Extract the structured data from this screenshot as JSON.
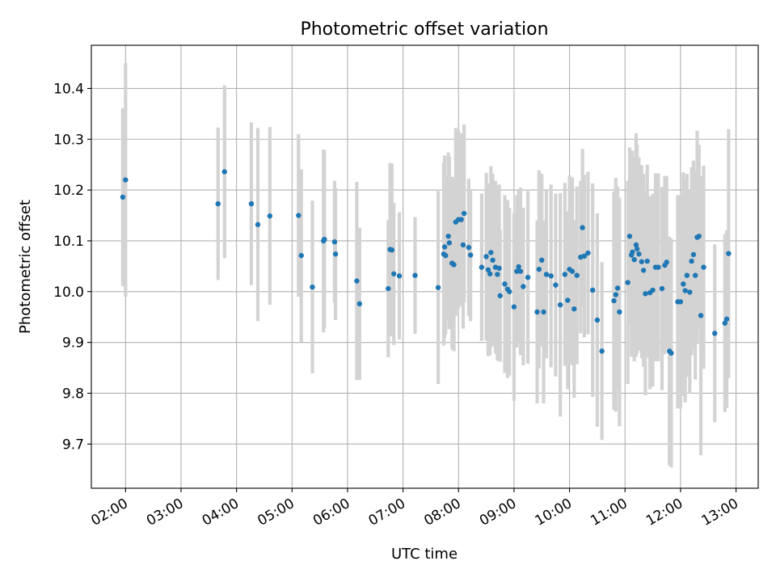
{
  "chart_data": {
    "type": "scatter",
    "title": "Photometric offset variation",
    "xlabel": "UTC time",
    "ylabel": "Photometric offset",
    "xlim": [
      "01:23",
      "13:24"
    ],
    "ylim": [
      9.613,
      10.485
    ],
    "grid": true,
    "legend": "none",
    "x_tick_labels": [
      "02:00",
      "03:00",
      "04:00",
      "05:00",
      "06:00",
      "07:00",
      "08:00",
      "09:00",
      "10:00",
      "11:00",
      "12:00",
      "13:00"
    ],
    "y_tick_values": [
      9.7,
      9.8,
      9.9,
      10.0,
      10.1,
      10.2,
      10.3,
      10.4
    ],
    "y_tick_labels": [
      "9.7",
      "9.8",
      "9.9",
      "10.0",
      "10.1",
      "10.2",
      "10.3",
      "10.4"
    ],
    "colors": {
      "point": "#1f77b4",
      "errorbar": "#d3d3d3",
      "grid": "#b0b0b0",
      "axis": "#000000"
    },
    "series": [
      {
        "point_columns": [
          "time",
          "offset",
          "error"
        ],
        "points": [
          [
            "01:57",
            10.186,
            0.175
          ],
          [
            "02:00",
            10.22,
            0.23
          ],
          [
            "03:40",
            10.173,
            0.15
          ],
          [
            "03:47",
            10.236,
            0.17
          ],
          [
            "04:16",
            10.173,
            0.16
          ],
          [
            "04:23",
            10.132,
            0.19
          ],
          [
            "04:36",
            10.149,
            0.175
          ],
          [
            "05:07",
            10.15,
            0.16
          ],
          [
            "05:10",
            10.071,
            0.17
          ],
          [
            "05:22",
            10.009,
            0.17
          ],
          [
            "05:34",
            10.1,
            0.18
          ],
          [
            "05:35",
            10.103,
            0.175
          ],
          [
            "05:46",
            10.098,
            0.12
          ],
          [
            "05:47",
            10.074,
            0.13
          ],
          [
            "06:10",
            10.021,
            0.195
          ],
          [
            "06:13",
            9.976,
            0.15
          ],
          [
            "06:44",
            10.006,
            0.135
          ],
          [
            "06:46",
            10.083,
            0.17
          ],
          [
            "06:48",
            10.082,
            0.17
          ],
          [
            "06:50",
            10.035,
            0.14
          ],
          [
            "06:56",
            10.031,
            0.125
          ],
          [
            "07:13",
            10.032,
            0.115
          ],
          [
            "07:38",
            10.008,
            0.19
          ],
          [
            "07:44",
            10.074,
            0.18
          ],
          [
            "07:45",
            10.088,
            0.18
          ],
          [
            "07:46",
            10.071,
            0.155
          ],
          [
            "07:49",
            10.109,
            0.165
          ],
          [
            "07:50",
            10.096,
            0.17
          ],
          [
            "07:53",
            10.056,
            0.17
          ],
          [
            "07:55",
            10.053,
            0.17
          ],
          [
            "07:57",
            10.137,
            0.185
          ],
          [
            "08:00",
            10.142,
            0.175
          ],
          [
            "08:03",
            10.142,
            0.17
          ],
          [
            "08:05",
            10.092,
            0.165
          ],
          [
            "08:06",
            10.154,
            0.175
          ],
          [
            "08:11",
            10.087,
            0.135
          ],
          [
            "08:13",
            10.072,
            0.13
          ],
          [
            "08:25",
            10.048,
            0.145
          ],
          [
            "08:30",
            10.069,
            0.165
          ],
          [
            "08:32",
            10.043,
            0.17
          ],
          [
            "08:34",
            10.035,
            0.16
          ],
          [
            "08:35",
            10.077,
            0.17
          ],
          [
            "08:37",
            10.062,
            0.17
          ],
          [
            "08:40",
            10.048,
            0.17
          ],
          [
            "08:42",
            10.034,
            0.17
          ],
          [
            "08:44",
            10.046,
            0.165
          ],
          [
            "08:45",
            9.992,
            0.13
          ],
          [
            "08:50",
            10.015,
            0.175
          ],
          [
            "08:53",
            10.005,
            0.175
          ],
          [
            "08:55",
            10.0,
            0.165
          ],
          [
            "09:00",
            9.97,
            0.185
          ],
          [
            "09:03",
            10.04,
            0.15
          ],
          [
            "09:05",
            10.049,
            0.15
          ],
          [
            "09:07",
            10.04,
            0.165
          ],
          [
            "09:10",
            10.01,
            0.155
          ],
          [
            "09:15",
            10.028,
            0.17
          ],
          [
            "09:25",
            9.96,
            0.18
          ],
          [
            "09:27",
            10.044,
            0.195
          ],
          [
            "09:30",
            10.062,
            0.17
          ],
          [
            "09:32",
            9.96,
            0.18
          ],
          [
            "09:35",
            10.034,
            0.165
          ],
          [
            "09:40",
            10.031,
            0.18
          ],
          [
            "09:45",
            10.013,
            0.18
          ],
          [
            "09:50",
            9.974,
            0.22
          ],
          [
            "09:55",
            10.034,
            0.18
          ],
          [
            "09:58",
            9.983,
            0.175
          ],
          [
            "10:00",
            10.044,
            0.185
          ],
          [
            "10:03",
            10.04,
            0.185
          ],
          [
            "10:05",
            9.966,
            0.175
          ],
          [
            "10:08",
            10.032,
            0.175
          ],
          [
            "10:12",
            10.068,
            0.15
          ],
          [
            "10:14",
            10.126,
            0.155
          ],
          [
            "10:16",
            10.07,
            0.16
          ],
          [
            "10:20",
            10.076,
            0.16
          ],
          [
            "10:25",
            10.003,
            0.21
          ],
          [
            "10:30",
            9.944,
            0.21
          ],
          [
            "10:35",
            9.883,
            0.175
          ],
          [
            "10:48",
            9.982,
            0.215
          ],
          [
            "10:50",
            9.994,
            0.23
          ],
          [
            "10:52",
            10.007,
            0.2
          ],
          [
            "10:54",
            9.96,
            0.225
          ],
          [
            "11:03",
            10.018,
            0.2
          ],
          [
            "11:05",
            10.109,
            0.175
          ],
          [
            "11:07",
            10.072,
            0.2
          ],
          [
            "11:08",
            10.078,
            0.2
          ],
          [
            "11:10",
            10.063,
            0.2
          ],
          [
            "11:12",
            10.092,
            0.22
          ],
          [
            "11:13",
            10.084,
            0.205
          ],
          [
            "11:15",
            10.074,
            0.19
          ],
          [
            "11:18",
            10.059,
            0.19
          ],
          [
            "11:20",
            10.042,
            0.19
          ],
          [
            "11:22",
            9.996,
            0.2
          ],
          [
            "11:24",
            10.06,
            0.19
          ],
          [
            "11:27",
            9.998,
            0.19
          ],
          [
            "11:30",
            10.003,
            0.19
          ],
          [
            "11:33",
            10.048,
            0.185
          ],
          [
            "11:36",
            10.048,
            0.185
          ],
          [
            "11:40",
            10.006,
            0.2
          ],
          [
            "11:43",
            10.052,
            0.175
          ],
          [
            "11:45",
            10.058,
            0.17
          ],
          [
            "11:48",
            9.883,
            0.225
          ],
          [
            "11:50",
            9.879,
            0.225
          ],
          [
            "11:57",
            9.98,
            0.21
          ],
          [
            "12:00",
            9.98,
            0.21
          ],
          [
            "12:03",
            10.015,
            0.22
          ],
          [
            "12:05",
            10.002,
            0.22
          ],
          [
            "12:07",
            10.032,
            0.2
          ],
          [
            "12:10",
            9.999,
            0.2
          ],
          [
            "12:12",
            10.06,
            0.185
          ],
          [
            "12:14",
            10.073,
            0.185
          ],
          [
            "12:16",
            10.032,
            0.205
          ],
          [
            "12:18",
            10.107,
            0.21
          ],
          [
            "12:20",
            10.109,
            0.18
          ],
          [
            "12:22",
            9.953,
            0.275
          ],
          [
            "12:25",
            10.048,
            0.2
          ],
          [
            "12:37",
            9.918,
            0.175
          ],
          [
            "12:48",
            9.938,
            0.175
          ],
          [
            "12:50",
            9.946,
            0.175
          ],
          [
            "12:52",
            10.075,
            0.245
          ]
        ]
      }
    ]
  }
}
